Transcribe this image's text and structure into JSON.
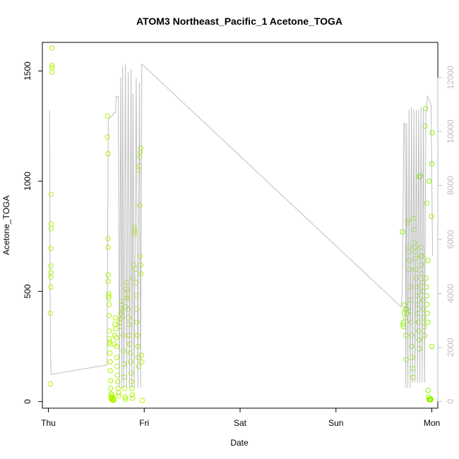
{
  "chart_data": {
    "type": "scatter",
    "title": "ATOM3 Northeast_Pacific_1 Acetone_TOGA",
    "xlabel": "Date",
    "ylabel": "Acetone_TOGA",
    "x_ticks": [
      "Thu",
      "Fri",
      "Sat",
      "Sun",
      "Mon"
    ],
    "x_tick_hours": [
      0,
      24,
      48,
      72,
      96
    ],
    "xlim_hours": [
      -1.5,
      97.5
    ],
    "ylim": [
      -30,
      1630
    ],
    "y_ticks": [
      0,
      500,
      1000,
      1500
    ],
    "y2lim": [
      -250,
      13300
    ],
    "y2_ticks": [
      0,
      2000,
      4000,
      6000,
      8000,
      10000,
      12000
    ],
    "y2_color": "#bebebe",
    "grid": false,
    "legend": "none",
    "series": [
      {
        "kind": "points",
        "color": "#aef500",
        "points": [
          [
            0.5,
            80
          ],
          [
            0.5,
            400
          ],
          [
            0.6,
            520
          ],
          [
            0.6,
            565
          ],
          [
            0.6,
            585
          ],
          [
            0.6,
            615
          ],
          [
            0.6,
            695
          ],
          [
            0.7,
            785
          ],
          [
            0.7,
            805
          ],
          [
            0.7,
            940
          ],
          [
            0.9,
            1495
          ],
          [
            0.9,
            1515
          ],
          [
            0.9,
            1525
          ],
          [
            0.9,
            1605
          ],
          [
            14.8,
            1295
          ],
          [
            14.8,
            1200
          ],
          [
            14.9,
            1125
          ],
          [
            14.9,
            740
          ],
          [
            15.0,
            700
          ],
          [
            15.0,
            575
          ],
          [
            15.0,
            545
          ],
          [
            15.1,
            490
          ],
          [
            15.1,
            480
          ],
          [
            15.1,
            470
          ],
          [
            15.2,
            440
          ],
          [
            15.2,
            390
          ],
          [
            15.3,
            320
          ],
          [
            15.3,
            285
          ],
          [
            15.3,
            270
          ],
          [
            15.4,
            260
          ],
          [
            15.4,
            220
          ],
          [
            15.5,
            180
          ],
          [
            15.5,
            140
          ],
          [
            15.6,
            95
          ],
          [
            15.6,
            60
          ],
          [
            15.7,
            35
          ],
          [
            15.7,
            20
          ],
          [
            15.8,
            15
          ],
          [
            15.8,
            10
          ],
          [
            15.9,
            30
          ],
          [
            16.0,
            20
          ],
          [
            16.1,
            10
          ],
          [
            16.2,
            5
          ],
          [
            16.3,
            15
          ],
          [
            16.4,
            8
          ],
          [
            16.5,
            260
          ],
          [
            16.6,
            300
          ],
          [
            16.7,
            350
          ],
          [
            16.8,
            380
          ],
          [
            16.9,
            330
          ],
          [
            17.0,
            290
          ],
          [
            17.1,
            250
          ],
          [
            17.1,
            200
          ],
          [
            17.2,
            160
          ],
          [
            17.3,
            120
          ],
          [
            17.4,
            90
          ],
          [
            17.5,
            60
          ],
          [
            17.6,
            40
          ],
          [
            17.7,
            25
          ],
          [
            17.8,
            340
          ],
          [
            17.9,
            360
          ],
          [
            18.0,
            375
          ],
          [
            18.1,
            400
          ],
          [
            18.2,
            420
          ],
          [
            18.3,
            440
          ],
          [
            18.4,
            455
          ],
          [
            18.5,
            410
          ],
          [
            18.6,
            385
          ],
          [
            18.7,
            300
          ],
          [
            18.8,
            230
          ],
          [
            18.9,
            170
          ],
          [
            19.0,
            110
          ],
          [
            19.1,
            60
          ],
          [
            19.2,
            20
          ],
          [
            19.3,
            10
          ],
          [
            19.4,
            430
          ],
          [
            19.5,
            470
          ],
          [
            19.6,
            510
          ],
          [
            19.7,
            540
          ],
          [
            19.8,
            500
          ],
          [
            19.9,
            470
          ],
          [
            20.0,
            420
          ],
          [
            20.1,
            380
          ],
          [
            20.2,
            350
          ],
          [
            20.3,
            300
          ],
          [
            20.4,
            260
          ],
          [
            20.5,
            220
          ],
          [
            20.6,
            180
          ],
          [
            20.7,
            130
          ],
          [
            20.8,
            90
          ],
          [
            20.9,
            60
          ],
          [
            21.0,
            30
          ],
          [
            21.1,
            15
          ],
          [
            21.2,
            560
          ],
          [
            21.3,
            620
          ],
          [
            21.4,
            760
          ],
          [
            21.5,
            780
          ],
          [
            21.6,
            790
          ],
          [
            21.7,
            770
          ],
          [
            21.8,
            600
          ],
          [
            21.9,
            540
          ],
          [
            22.0,
            480
          ],
          [
            22.1,
            420
          ],
          [
            22.2,
            360
          ],
          [
            22.3,
            300
          ],
          [
            22.4,
            250
          ],
          [
            22.5,
            200
          ],
          [
            22.6,
            160
          ],
          [
            22.7,
            1050
          ],
          [
            22.8,
            1070
          ],
          [
            22.9,
            1110
          ],
          [
            23.0,
            1130
          ],
          [
            23.1,
            1150
          ],
          [
            22.9,
            890
          ],
          [
            23.0,
            660
          ],
          [
            23.1,
            620
          ],
          [
            23.2,
            580
          ],
          [
            23.3,
            210
          ],
          [
            23.4,
            180
          ],
          [
            23.5,
            5
          ]
        ]
      },
      {
        "kind": "points",
        "color": "#8ef500",
        "points": [
          [
            88.6,
            770
          ],
          [
            88.8,
            350
          ],
          [
            88.9,
            340
          ],
          [
            89.0,
            360
          ],
          [
            89.1,
            400
          ],
          [
            89.2,
            440
          ],
          [
            89.3,
            420
          ],
          [
            89.4,
            380
          ],
          [
            89.5,
            300
          ],
          [
            89.6,
            190
          ],
          [
            89.7,
            420
          ],
          [
            89.8,
            400
          ],
          [
            89.9,
            810
          ],
          [
            90.0,
            820
          ],
          [
            90.1,
            700
          ],
          [
            90.2,
            680
          ],
          [
            90.3,
            640
          ],
          [
            90.4,
            600
          ],
          [
            90.5,
            520
          ],
          [
            90.6,
            460
          ],
          [
            90.7,
            410
          ],
          [
            90.8,
            360
          ],
          [
            90.9,
            300
          ],
          [
            91.0,
            250
          ],
          [
            91.1,
            200
          ],
          [
            91.2,
            150
          ],
          [
            91.3,
            110
          ],
          [
            91.4,
            830
          ],
          [
            91.5,
            780
          ],
          [
            91.6,
            720
          ],
          [
            91.7,
            700
          ],
          [
            91.8,
            680
          ],
          [
            91.9,
            650
          ],
          [
            92.0,
            600
          ],
          [
            92.1,
            560
          ],
          [
            92.2,
            520
          ],
          [
            92.3,
            480
          ],
          [
            92.4,
            440
          ],
          [
            92.5,
            400
          ],
          [
            92.6,
            360
          ],
          [
            92.7,
            320
          ],
          [
            92.8,
            280
          ],
          [
            92.9,
            240
          ],
          [
            93.0,
            1020
          ],
          [
            93.1,
            1025
          ],
          [
            93.2,
            700
          ],
          [
            93.3,
            660
          ],
          [
            93.4,
            620
          ],
          [
            93.5,
            580
          ],
          [
            93.6,
            540
          ],
          [
            93.7,
            500
          ],
          [
            93.8,
            460
          ],
          [
            93.9,
            420
          ],
          [
            94.0,
            380
          ],
          [
            94.1,
            340
          ],
          [
            94.2,
            300
          ],
          [
            94.3,
            1250
          ],
          [
            94.4,
            1330
          ],
          [
            94.5,
            560
          ],
          [
            94.6,
            520
          ],
          [
            94.7,
            480
          ],
          [
            94.8,
            440
          ],
          [
            94.9,
            400
          ],
          [
            95.0,
            360
          ],
          [
            95.1,
            50
          ],
          [
            95.2,
            20
          ],
          [
            95.3,
            10
          ],
          [
            95.4,
            8
          ],
          [
            95.5,
            10
          ],
          [
            95.6,
            12
          ],
          [
            95.7,
            8
          ],
          [
            95.8,
            10
          ],
          [
            95.9,
            840
          ],
          [
            96.0,
            1080
          ],
          [
            96.1,
            1220
          ],
          [
            96.0,
            250
          ],
          [
            95.3,
            1000
          ],
          [
            95.0,
            640
          ],
          [
            94.7,
            900
          ],
          [
            93.6,
            660
          ],
          [
            92.7,
            1020
          ]
        ]
      },
      {
        "kind": "line",
        "axis": "right",
        "color": "#bebebe",
        "points": [
          [
            0.3,
            10800
          ],
          [
            0.5,
            2000
          ],
          [
            0.7,
            1000
          ],
          [
            14.7,
            1350
          ],
          [
            15.0,
            10350
          ],
          [
            15.2,
            10500
          ],
          [
            15.8,
            10550
          ],
          [
            16.5,
            10700
          ],
          [
            16.8,
            10700
          ],
          [
            17.0,
            11300
          ],
          [
            17.5,
            11300
          ],
          [
            17.8,
            500
          ],
          [
            18.1,
            12000
          ],
          [
            18.4,
            500
          ],
          [
            18.6,
            12400
          ],
          [
            18.9,
            500
          ],
          [
            19.3,
            12500
          ],
          [
            19.6,
            500
          ],
          [
            20.0,
            12200
          ],
          [
            20.3,
            500
          ],
          [
            20.7,
            12300
          ],
          [
            20.9,
            500
          ],
          [
            21.2,
            11400
          ],
          [
            21.5,
            500
          ],
          [
            22.0,
            12000
          ],
          [
            22.4,
            500
          ],
          [
            22.8,
            11800
          ],
          [
            23.1,
            500
          ],
          [
            23.4,
            12500
          ],
          [
            88.3,
            3500
          ],
          [
            88.6,
            4000
          ],
          [
            89.0,
            10300
          ],
          [
            89.3,
            10300
          ],
          [
            89.5,
            500
          ],
          [
            89.7,
            10300
          ],
          [
            90.0,
            500
          ],
          [
            90.3,
            10800
          ],
          [
            90.6,
            500
          ],
          [
            90.9,
            10900
          ],
          [
            91.2,
            700
          ],
          [
            91.5,
            10800
          ],
          [
            91.8,
            700
          ],
          [
            92.1,
            10800
          ],
          [
            92.4,
            700
          ],
          [
            92.7,
            10800
          ],
          [
            93.0,
            700
          ],
          [
            93.3,
            10900
          ],
          [
            93.6,
            700
          ],
          [
            93.9,
            10900
          ],
          [
            94.2,
            700
          ],
          [
            94.5,
            10600
          ],
          [
            94.9,
            11300
          ],
          [
            95.3,
            11200
          ],
          [
            95.8,
            11000
          ],
          [
            96.2,
            5400
          ]
        ]
      }
    ]
  }
}
